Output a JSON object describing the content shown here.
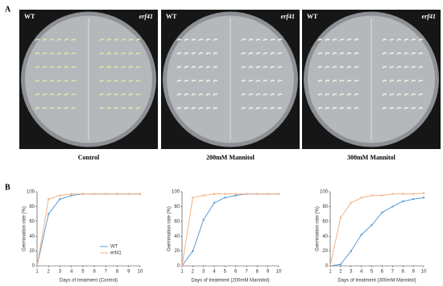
{
  "panel_labels": [
    "A",
    "B"
  ],
  "photos": [
    {
      "left": "WT",
      "right": "erf41",
      "caption": "Control"
    },
    {
      "left": "WT",
      "right": "erf41",
      "caption": "200mM Mannitol"
    },
    {
      "left": "WT",
      "right": "erf41",
      "caption": "300mM Mannitol"
    }
  ],
  "chart_data": [
    {
      "type": "line",
      "xlabel": "Days of treatment (Control)",
      "ylabel": "Germination rate (%)",
      "x": [
        1,
        2,
        3,
        4,
        5,
        6,
        7,
        8,
        9,
        10
      ],
      "xlim": [
        1,
        10
      ],
      "xticks": [
        1,
        2,
        3,
        4,
        5,
        6,
        7,
        8,
        9,
        10
      ],
      "ylim": [
        0,
        100
      ],
      "yticks": [
        0,
        20,
        40,
        60,
        80,
        100
      ],
      "legend": "center right",
      "series": [
        {
          "name": "WT",
          "color": "#5b9bd5",
          "values": [
            0,
            70,
            90,
            95,
            97,
            97,
            97,
            97,
            97,
            97
          ]
        },
        {
          "name": "erf41",
          "color": "#f4b183",
          "values": [
            0,
            90,
            95,
            97,
            97,
            97,
            97,
            97,
            97,
            97
          ]
        }
      ]
    },
    {
      "type": "line",
      "xlabel": "Days of treatment (200mM Mannitol)",
      "ylabel": "Germination rate (%)",
      "x": [
        1,
        2,
        3,
        4,
        5,
        6,
        7,
        8,
        9,
        10
      ],
      "xlim": [
        1,
        10
      ],
      "xticks": [
        1,
        2,
        3,
        4,
        5,
        6,
        7,
        8,
        9,
        10
      ],
      "ylim": [
        0,
        100
      ],
      "yticks": [
        0,
        20,
        40,
        60,
        80,
        100
      ],
      "series": [
        {
          "color": "#5b9bd5",
          "values": [
            0,
            20,
            62,
            85,
            92,
            95,
            97,
            97,
            97,
            97
          ]
        },
        {
          "color": "#f4b183",
          "values": [
            0,
            92,
            95,
            97,
            97,
            97,
            97,
            97,
            97,
            97
          ]
        }
      ]
    },
    {
      "type": "line",
      "xlabel": "Days of treatment (300mM Mannitol)",
      "ylabel": "Germination rate (%)",
      "x": [
        1,
        2,
        3,
        4,
        5,
        6,
        7,
        8,
        9,
        10
      ],
      "xlim": [
        1,
        10
      ],
      "xticks": [
        1,
        2,
        3,
        4,
        5,
        6,
        7,
        8,
        9,
        10
      ],
      "ylim": [
        0,
        100
      ],
      "yticks": [
        0,
        20,
        40,
        60,
        80,
        100
      ],
      "series": [
        {
          "color": "#5b9bd5",
          "values": [
            0,
            2,
            20,
            42,
            55,
            72,
            80,
            87,
            90,
            92
          ]
        },
        {
          "color": "#f4b183",
          "values": [
            0,
            65,
            85,
            92,
            95,
            95,
            97,
            97,
            97,
            98
          ]
        }
      ]
    }
  ]
}
